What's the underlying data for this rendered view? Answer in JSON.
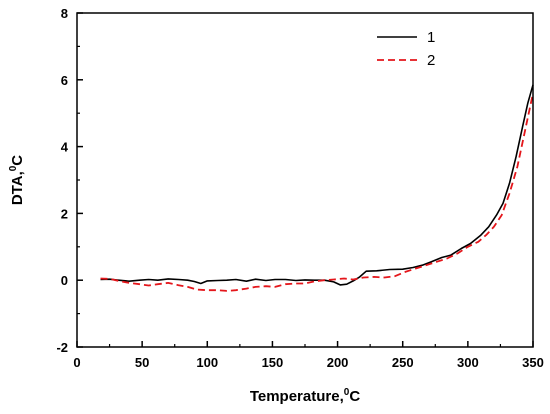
{
  "chart_data": {
    "type": "line",
    "xlabel": {
      "main": "Temperature,",
      "sup": "0",
      "unit": "C"
    },
    "ylabel": {
      "main": "DTA,",
      "sup": "0",
      "unit": "C"
    },
    "xlim": [
      0,
      350
    ],
    "ylim": [
      -2,
      8
    ],
    "xticks": [
      0,
      50,
      100,
      150,
      200,
      250,
      300,
      350
    ],
    "yticks": [
      -2,
      0,
      2,
      4,
      6,
      8
    ],
    "grid": false,
    "legend_position": "top-right",
    "series": [
      {
        "name": "1",
        "color": "#000000",
        "dash": "solid",
        "x": [
          18,
          25,
          32,
          40,
          48,
          55,
          62,
          70,
          78,
          85,
          90,
          95,
          100,
          108,
          115,
          122,
          130,
          137,
          145,
          152,
          160,
          168,
          175,
          182,
          190,
          197,
          202,
          207,
          212,
          217,
          222,
          230,
          240,
          250,
          258,
          265,
          272,
          280,
          287,
          295,
          302,
          310,
          316,
          322,
          327,
          332,
          337,
          342,
          346,
          350
        ],
        "y": [
          0.02,
          0.03,
          0.0,
          -0.03,
          0.0,
          0.02,
          0.0,
          0.04,
          0.02,
          0.0,
          -0.04,
          -0.1,
          -0.02,
          -0.01,
          0.0,
          0.02,
          -0.03,
          0.03,
          -0.01,
          0.02,
          0.02,
          -0.01,
          0.01,
          0.0,
          0.0,
          -0.05,
          -0.14,
          -0.12,
          -0.02,
          0.1,
          0.27,
          0.28,
          0.32,
          0.33,
          0.38,
          0.45,
          0.55,
          0.68,
          0.75,
          0.95,
          1.1,
          1.35,
          1.6,
          1.95,
          2.3,
          2.9,
          3.7,
          4.6,
          5.3,
          5.85
        ]
      },
      {
        "name": "2",
        "color": "#e4161b",
        "dash": "dashed",
        "x": [
          18,
          25,
          32,
          40,
          48,
          55,
          62,
          70,
          78,
          85,
          92,
          100,
          108,
          115,
          122,
          130,
          137,
          145,
          152,
          160,
          168,
          175,
          182,
          190,
          197,
          205,
          212,
          220,
          228,
          236,
          244,
          252,
          260,
          268,
          276,
          284,
          292,
          300,
          308,
          314,
          320,
          326,
          332,
          338,
          344,
          350
        ],
        "y": [
          0.05,
          0.04,
          -0.02,
          -0.08,
          -0.12,
          -0.16,
          -0.12,
          -0.08,
          -0.15,
          -0.2,
          -0.28,
          -0.3,
          -0.3,
          -0.32,
          -0.3,
          -0.25,
          -0.2,
          -0.18,
          -0.2,
          -0.12,
          -0.1,
          -0.1,
          -0.04,
          0.0,
          0.02,
          0.05,
          0.02,
          0.08,
          0.1,
          0.08,
          0.12,
          0.25,
          0.35,
          0.45,
          0.55,
          0.65,
          0.8,
          1.0,
          1.15,
          1.35,
          1.6,
          1.95,
          2.6,
          3.4,
          4.5,
          5.6
        ]
      }
    ]
  }
}
